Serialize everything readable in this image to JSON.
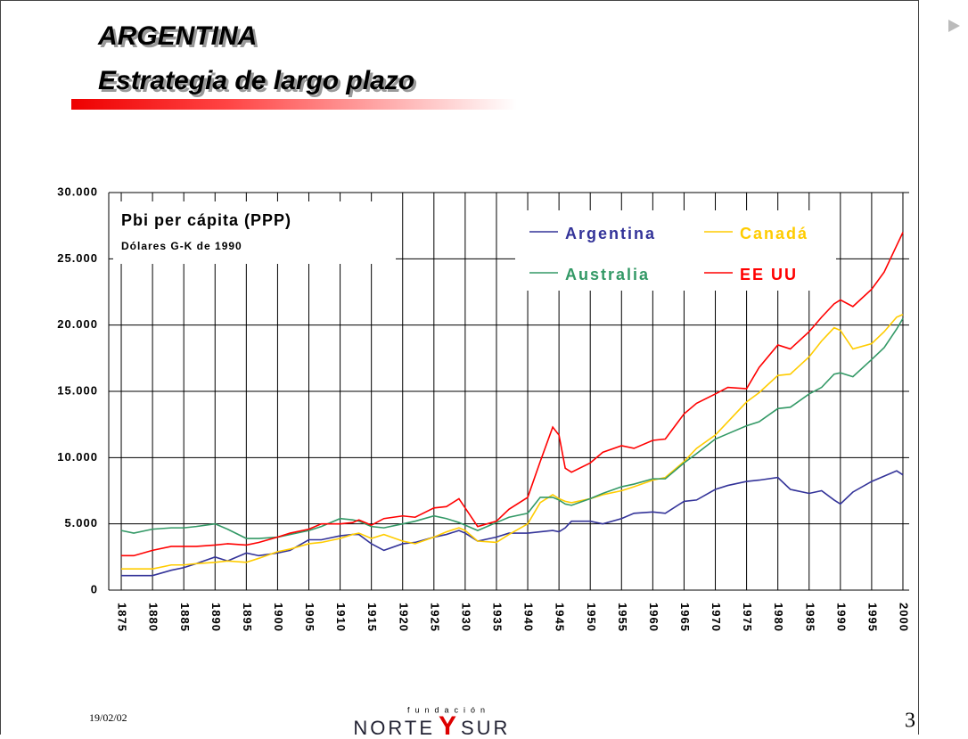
{
  "header": {
    "title": "ARGENTINA",
    "subtitle": "Estrategia de largo plazo"
  },
  "chart_data": {
    "type": "line",
    "title": "Pbi per cápita (PPP)",
    "subtitle": "Dólares G-K de 1990",
    "x": [
      1875,
      1877,
      1880,
      1883,
      1885,
      1887,
      1890,
      1892,
      1895,
      1897,
      1900,
      1902,
      1905,
      1907,
      1910,
      1912,
      1913,
      1915,
      1917,
      1920,
      1922,
      1925,
      1927,
      1929,
      1930,
      1932,
      1935,
      1937,
      1940,
      1942,
      1944,
      1945,
      1946,
      1947,
      1950,
      1952,
      1955,
      1957,
      1960,
      1962,
      1965,
      1967,
      1970,
      1972,
      1975,
      1977,
      1980,
      1982,
      1985,
      1987,
      1989,
      1990,
      1992,
      1995,
      1997,
      1999,
      2000
    ],
    "series": [
      {
        "name": "Argentina",
        "color": "#333399",
        "values": [
          1100,
          1100,
          1100,
          1500,
          1700,
          2000,
          2500,
          2200,
          2800,
          2600,
          2800,
          3000,
          3800,
          3800,
          4100,
          4200,
          4200,
          3500,
          3000,
          3500,
          3600,
          4000,
          4200,
          4500,
          4300,
          3700,
          4000,
          4300,
          4300,
          4400,
          4500,
          4400,
          4700,
          5200,
          5200,
          5000,
          5400,
          5800,
          5900,
          5800,
          6700,
          6800,
          7600,
          7900,
          8200,
          8300,
          8500,
          7600,
          7300,
          7500,
          6800,
          6500,
          7400,
          8200,
          8600,
          9000,
          8700
        ]
      },
      {
        "name": "Canadá",
        "color": "#ffcc00",
        "values": [
          1600,
          1600,
          1600,
          1900,
          1900,
          2000,
          2100,
          2200,
          2100,
          2400,
          2900,
          3100,
          3500,
          3600,
          3900,
          4200,
          4300,
          3900,
          4200,
          3700,
          3500,
          4000,
          4400,
          4700,
          4500,
          3700,
          3600,
          4200,
          5000,
          6600,
          7200,
          6900,
          6700,
          6600,
          6900,
          7200,
          7500,
          7800,
          8300,
          8500,
          9700,
          10700,
          11700,
          12700,
          14200,
          14900,
          16200,
          16300,
          17600,
          18800,
          19800,
          19600,
          18200,
          18600,
          19500,
          20600,
          20800
        ]
      },
      {
        "name": "Australia",
        "color": "#339966",
        "values": [
          4500,
          4300,
          4600,
          4700,
          4700,
          4800,
          5000,
          4600,
          3900,
          3900,
          4000,
          4200,
          4500,
          4800,
          5400,
          5300,
          5200,
          4800,
          4700,
          5000,
          5200,
          5600,
          5400,
          5100,
          4900,
          4500,
          5100,
          5500,
          5800,
          7000,
          7000,
          6800,
          6500,
          6400,
          6900,
          7300,
          7800,
          8000,
          8400,
          8400,
          9600,
          10300,
          11400,
          11800,
          12400,
          12700,
          13700,
          13800,
          14800,
          15300,
          16300,
          16400,
          16100,
          17400,
          18300,
          19700,
          20500
        ]
      },
      {
        "name": "EE UU",
        "color": "#ff0000",
        "values": [
          2600,
          2600,
          3000,
          3300,
          3300,
          3300,
          3400,
          3500,
          3400,
          3600,
          4000,
          4300,
          4600,
          5000,
          5000,
          5100,
          5300,
          4900,
          5400,
          5600,
          5500,
          6200,
          6300,
          6900,
          6200,
          4800,
          5200,
          6100,
          7000,
          9700,
          12300,
          11700,
          9200,
          8900,
          9600,
          10400,
          10900,
          10700,
          11300,
          11400,
          13300,
          14100,
          14800,
          15300,
          15200,
          16800,
          18500,
          18200,
          19500,
          20600,
          21600,
          21900,
          21400,
          22700,
          24000,
          26000,
          27000
        ]
      }
    ],
    "xlim": [
      1873,
      2001
    ],
    "xticks": [
      1875,
      1880,
      1885,
      1890,
      1895,
      1900,
      1905,
      1910,
      1915,
      1920,
      1925,
      1930,
      1935,
      1940,
      1945,
      1950,
      1955,
      1960,
      1965,
      1970,
      1975,
      1980,
      1985,
      1990,
      1995,
      2000
    ],
    "ylim": [
      0,
      30000
    ],
    "yticks": [
      0,
      {
        "value": 5000,
        "label": "5.000"
      },
      {
        "value": 10000,
        "label": "10.000"
      },
      {
        "value": 15000,
        "label": "15.000"
      },
      {
        "value": 20000,
        "label": "20.000"
      },
      {
        "value": 25000,
        "label": "25.000"
      },
      {
        "value": 30000,
        "label": "30.000"
      }
    ],
    "grid": true,
    "legend": "upper right"
  },
  "footer": {
    "date": "19/02/02",
    "logo_small": "fundación",
    "logo_left": "NORTE",
    "logo_mid": "Y",
    "logo_right": "SUR",
    "page": "3"
  }
}
